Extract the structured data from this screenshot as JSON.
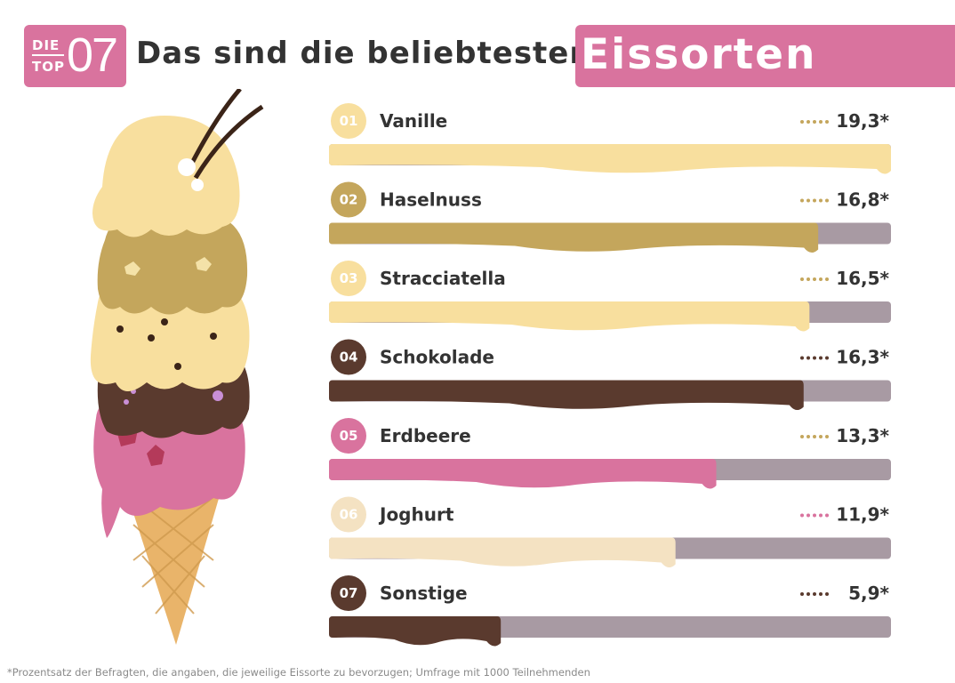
{
  "header": {
    "badge_die": "DIE",
    "badge_top": "TOP",
    "badge_number": "07",
    "title": "Das sind die beliebtesten",
    "title_accent": "Eissorten"
  },
  "chart_data": {
    "type": "bar",
    "orientation": "horizontal",
    "title": "Das sind die beliebtesten Eissorten",
    "unit": "%",
    "xlim": [
      0,
      19.3
    ],
    "categories": [
      "Vanille",
      "Haselnuss",
      "Stracciatella",
      "Schokolade",
      "Erdbeere",
      "Joghurt",
      "Sonstige"
    ],
    "ranks": [
      "01",
      "02",
      "03",
      "04",
      "05",
      "06",
      "07"
    ],
    "values": [
      19.3,
      16.8,
      16.5,
      16.3,
      13.3,
      11.9,
      5.9
    ],
    "value_labels": [
      "19,3*",
      "16,8*",
      "16,5*",
      "16,3*",
      "13,3*",
      "11,9*",
      "5,9*"
    ],
    "colors": [
      "#f8df9e",
      "#c4a65c",
      "#f8df9e",
      "#5a3a2e",
      "#d9739e",
      "#f4e2c2",
      "#5a3a2e"
    ],
    "track_color": "#a89aa3"
  },
  "footnote": "*Prozentsatz der Befragten, die angaben, die jeweilige Eissorte zu bevorzugen; Umfrage mit 1000 Teilnehmenden"
}
